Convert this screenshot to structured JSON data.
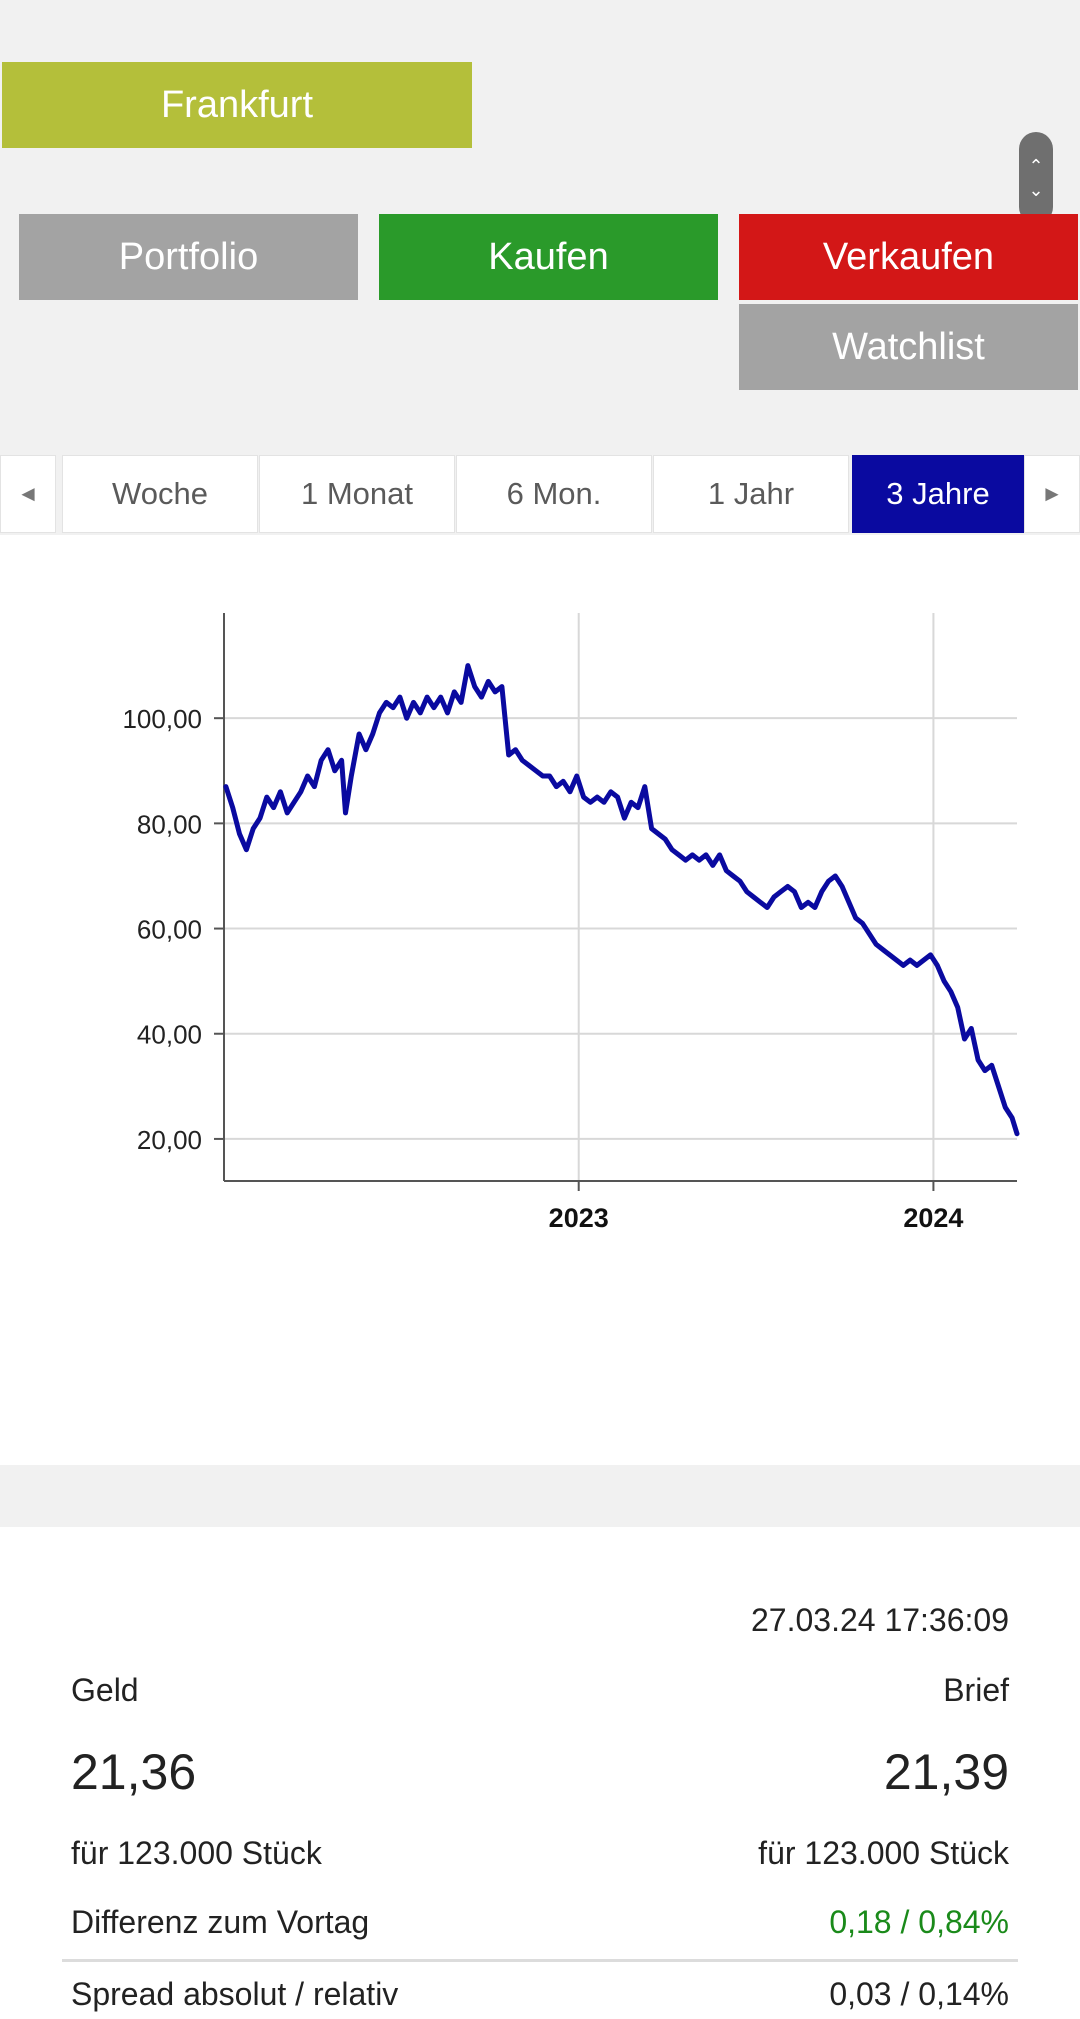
{
  "exchange": {
    "label": "Frankfurt"
  },
  "actions": {
    "portfolio": "Portfolio",
    "buy": "Kaufen",
    "sell": "Verkaufen",
    "watchlist": "Watchlist"
  },
  "scroll_handle": {
    "up": "⌃",
    "down": "⌄"
  },
  "range_tabs": {
    "prev": "◄",
    "next": "►",
    "items": [
      {
        "label": "Woche",
        "active": false
      },
      {
        "label": "1 Monat",
        "active": false
      },
      {
        "label": "6 Mon.",
        "active": false
      },
      {
        "label": "1 Jahr",
        "active": false
      },
      {
        "label": "3 Jahre",
        "active": true
      }
    ]
  },
  "colors": {
    "exchange": "#b4bf3a",
    "buy": "#2a9a2a",
    "sell": "#d31717",
    "neutral": "#a3a3a3",
    "active_tab": "#0a0aa0",
    "line": "#0a0aa0",
    "positive": "#1a8a1a"
  },
  "chart_data": {
    "type": "line",
    "x_axis": "time",
    "y_ticks": [
      "20,00",
      "40,00",
      "60,00",
      "80,00",
      "100,00"
    ],
    "y_tick_values": [
      20,
      40,
      60,
      80,
      100
    ],
    "x_ticks": [
      "2023",
      "2024"
    ],
    "x_tick_values": [
      "2023-01-01",
      "2024-01-01"
    ],
    "xlim": [
      "2022-01-01",
      "2024-03-27"
    ],
    "ylim": [
      12,
      120
    ],
    "grid": true,
    "series": [
      {
        "values": [
          [
            "2022-01-03",
            87
          ],
          [
            "2022-01-10",
            83
          ],
          [
            "2022-01-17",
            78
          ],
          [
            "2022-01-24",
            75
          ],
          [
            "2022-01-31",
            79
          ],
          [
            "2022-02-07",
            81
          ],
          [
            "2022-02-14",
            85
          ],
          [
            "2022-02-21",
            83
          ],
          [
            "2022-02-28",
            86
          ],
          [
            "2022-03-07",
            82
          ],
          [
            "2022-03-14",
            84
          ],
          [
            "2022-03-21",
            86
          ],
          [
            "2022-03-28",
            89
          ],
          [
            "2022-04-04",
            87
          ],
          [
            "2022-04-11",
            92
          ],
          [
            "2022-04-18",
            94
          ],
          [
            "2022-04-25",
            90
          ],
          [
            "2022-05-02",
            92
          ],
          [
            "2022-05-06",
            82
          ],
          [
            "2022-05-12",
            89
          ],
          [
            "2022-05-20",
            97
          ],
          [
            "2022-05-27",
            94
          ],
          [
            "2022-06-03",
            97
          ],
          [
            "2022-06-10",
            101
          ],
          [
            "2022-06-17",
            103
          ],
          [
            "2022-06-24",
            102
          ],
          [
            "2022-07-01",
            104
          ],
          [
            "2022-07-08",
            100
          ],
          [
            "2022-07-15",
            103
          ],
          [
            "2022-07-22",
            101
          ],
          [
            "2022-07-29",
            104
          ],
          [
            "2022-08-05",
            102
          ],
          [
            "2022-08-12",
            104
          ],
          [
            "2022-08-19",
            101
          ],
          [
            "2022-08-26",
            105
          ],
          [
            "2022-09-02",
            103
          ],
          [
            "2022-09-09",
            110
          ],
          [
            "2022-09-16",
            106
          ],
          [
            "2022-09-23",
            104
          ],
          [
            "2022-09-30",
            107
          ],
          [
            "2022-10-07",
            105
          ],
          [
            "2022-10-14",
            106
          ],
          [
            "2022-10-21",
            93
          ],
          [
            "2022-10-28",
            94
          ],
          [
            "2022-11-04",
            92
          ],
          [
            "2022-11-11",
            91
          ],
          [
            "2022-11-18",
            90
          ],
          [
            "2022-11-25",
            89
          ],
          [
            "2022-12-02",
            89
          ],
          [
            "2022-12-09",
            87
          ],
          [
            "2022-12-16",
            88
          ],
          [
            "2022-12-23",
            86
          ],
          [
            "2022-12-30",
            89
          ],
          [
            "2023-01-06",
            85
          ],
          [
            "2023-01-13",
            84
          ],
          [
            "2023-01-20",
            85
          ],
          [
            "2023-01-27",
            84
          ],
          [
            "2023-02-03",
            86
          ],
          [
            "2023-02-10",
            85
          ],
          [
            "2023-02-17",
            81
          ],
          [
            "2023-02-24",
            84
          ],
          [
            "2023-03-03",
            83
          ],
          [
            "2023-03-10",
            87
          ],
          [
            "2023-03-17",
            79
          ],
          [
            "2023-03-24",
            78
          ],
          [
            "2023-03-31",
            77
          ],
          [
            "2023-04-07",
            75
          ],
          [
            "2023-04-14",
            74
          ],
          [
            "2023-04-21",
            73
          ],
          [
            "2023-04-28",
            74
          ],
          [
            "2023-05-05",
            73
          ],
          [
            "2023-05-12",
            74
          ],
          [
            "2023-05-19",
            72
          ],
          [
            "2023-05-26",
            74
          ],
          [
            "2023-06-02",
            71
          ],
          [
            "2023-06-09",
            70
          ],
          [
            "2023-06-16",
            69
          ],
          [
            "2023-06-23",
            67
          ],
          [
            "2023-06-30",
            66
          ],
          [
            "2023-07-07",
            65
          ],
          [
            "2023-07-14",
            64
          ],
          [
            "2023-07-21",
            66
          ],
          [
            "2023-07-28",
            67
          ],
          [
            "2023-08-04",
            68
          ],
          [
            "2023-08-11",
            67
          ],
          [
            "2023-08-18",
            64
          ],
          [
            "2023-08-25",
            65
          ],
          [
            "2023-09-01",
            64
          ],
          [
            "2023-09-08",
            67
          ],
          [
            "2023-09-15",
            69
          ],
          [
            "2023-09-22",
            70
          ],
          [
            "2023-09-29",
            68
          ],
          [
            "2023-10-06",
            65
          ],
          [
            "2023-10-13",
            62
          ],
          [
            "2023-10-20",
            61
          ],
          [
            "2023-10-27",
            59
          ],
          [
            "2023-11-03",
            57
          ],
          [
            "2023-11-10",
            56
          ],
          [
            "2023-11-17",
            55
          ],
          [
            "2023-11-24",
            54
          ],
          [
            "2023-12-01",
            53
          ],
          [
            "2023-12-08",
            54
          ],
          [
            "2023-12-15",
            53
          ],
          [
            "2023-12-22",
            54
          ],
          [
            "2023-12-29",
            55
          ],
          [
            "2024-01-05",
            53
          ],
          [
            "2024-01-12",
            50
          ],
          [
            "2024-01-19",
            48
          ],
          [
            "2024-01-26",
            45
          ],
          [
            "2024-02-02",
            39
          ],
          [
            "2024-02-09",
            41
          ],
          [
            "2024-02-16",
            35
          ],
          [
            "2024-02-23",
            33
          ],
          [
            "2024-03-01",
            34
          ],
          [
            "2024-03-08",
            30
          ],
          [
            "2024-03-15",
            26
          ],
          [
            "2024-03-22",
            24
          ],
          [
            "2024-03-27",
            21
          ]
        ]
      }
    ]
  },
  "quote": {
    "timestamp": "27.03.24 17:36:09",
    "bid_label": "Geld",
    "ask_label": "Brief",
    "bid": "21,36",
    "ask": "21,39",
    "bid_size": "für 123.000 Stück",
    "ask_size": "für 123.000 Stück",
    "diff_label": "Differenz zum Vortag",
    "diff_value": "0,18 / 0,84%",
    "spread_label": "Spread absolut / relativ",
    "spread_value": "0,03 / 0,14%"
  }
}
